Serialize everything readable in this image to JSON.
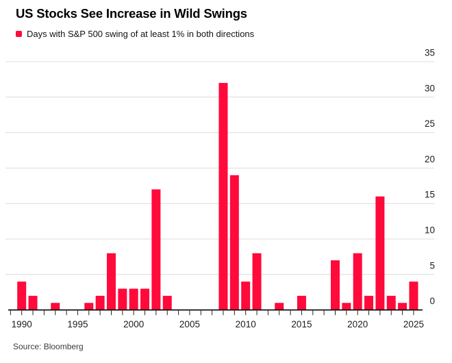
{
  "header": {
    "title": "US Stocks See Increase in Wild Swings",
    "legend": {
      "label": "Days with S&P 500 swing of at least 1% in both directions",
      "swatch_color": "#ff0a3b"
    }
  },
  "chart_data": {
    "type": "bar",
    "title": "US Stocks See Increase in Wild Swings",
    "legend_entries": [
      "Days with S&P 500 swing of at least 1% in both directions"
    ],
    "categories": [
      1990,
      1991,
      1992,
      1993,
      1994,
      1995,
      1996,
      1997,
      1998,
      1999,
      2000,
      2001,
      2002,
      2003,
      2004,
      2005,
      2006,
      2007,
      2008,
      2009,
      2010,
      2011,
      2012,
      2013,
      2014,
      2015,
      2016,
      2017,
      2018,
      2019,
      2020,
      2021,
      2022,
      2023,
      2024,
      2025
    ],
    "values": [
      4,
      2,
      0,
      1,
      0,
      0,
      1,
      2,
      8,
      3,
      3,
      3,
      17,
      2,
      0,
      0,
      0,
      0,
      32,
      19,
      4,
      8,
      0,
      1,
      0,
      2,
      0,
      0,
      7,
      1,
      8,
      2,
      16,
      2,
      1,
      4
    ],
    "xlabel": "",
    "ylabel": "",
    "ylim": [
      0,
      35
    ],
    "yticks": [
      0,
      5,
      10,
      15,
      20,
      25,
      30,
      35
    ],
    "ytick_side": "right",
    "xtick_labels": [
      "1990",
      "1995",
      "2000",
      "2005",
      "2010",
      "2015",
      "2020",
      "2025"
    ],
    "grid": true,
    "legend_position": "top-left",
    "bar_color": "#ff0a3b",
    "grid_color": "#dcdcdc",
    "axis_color": "#000000",
    "tick_label_color": "#1a1a1a"
  },
  "footer": {
    "source": "Source: Bloomberg"
  }
}
